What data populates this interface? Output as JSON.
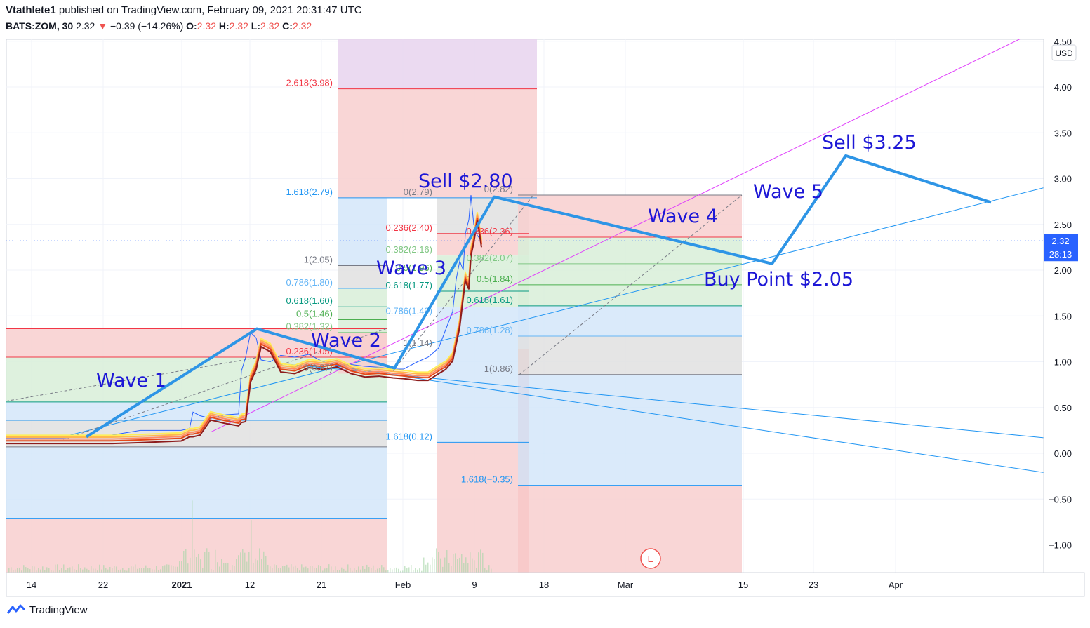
{
  "header": {
    "user": "Vtathlete1",
    "published": "published on TradingView.com, February 09, 2021 20:31:47 UTC",
    "symbol": "BATS:ZOM, 30",
    "last": "2.32",
    "change": "−0.39 (−14.26%)",
    "o_label": "O:",
    "o": "2.32",
    "h_label": "H:",
    "h": "2.32",
    "l_label": "L:",
    "l": "2.32",
    "c_label": "C:",
    "c": "2.32"
  },
  "footer": {
    "brand": "TradingView"
  },
  "chart_data": {
    "type": "line",
    "currency": "USD",
    "y_ticks": [
      "4.50",
      "4.00",
      "3.50",
      "3.00",
      "2.50",
      "2.00",
      "1.50",
      "1.00",
      "0.50",
      "0.00",
      "−0.50",
      "−1.00"
    ],
    "ylim": [
      -1.3,
      4.55
    ],
    "x_ticks": [
      "14",
      "22",
      "2021",
      "12",
      "21",
      "Feb",
      "9",
      "18",
      "Mar",
      "15",
      "23",
      "Apr"
    ],
    "price_label": "2.32",
    "countdown_label": "28:13",
    "earnings_marker": "E",
    "annotations": [
      "Wave 1",
      "Wave 2",
      "Wave 3",
      "Wave 4",
      "Wave 5",
      "Sell $2.80",
      "Sell $3.25",
      "Buy Point $2.05"
    ],
    "elliott_wave_path": [
      {
        "label": "start",
        "y": 0.18
      },
      {
        "label": "Wave 1",
        "y": 1.36
      },
      {
        "label": "Wave 2",
        "y": 0.93
      },
      {
        "label": "Sell $2.80",
        "y": 2.8
      },
      {
        "label": "Buy Point $2.05",
        "y": 2.07
      },
      {
        "label": "Sell $3.25",
        "y": 3.25
      },
      {
        "label": "end",
        "y": 2.74
      }
    ],
    "fib_labels": [
      {
        "text": "2.618(3.98)",
        "value": 3.98,
        "color": "#f23645"
      },
      {
        "text": "1.618(2.79)",
        "value": 2.79,
        "color": "#2196f3"
      },
      {
        "text": "0(2.79)",
        "value": 2.79,
        "color": "#787b86"
      },
      {
        "text": "0(2.82)",
        "value": 2.82,
        "color": "#787b86"
      },
      {
        "text": "0.236(2.40)",
        "value": 2.4,
        "color": "#f23645"
      },
      {
        "text": "0.236(2.36)",
        "value": 2.36,
        "color": "#f23645"
      },
      {
        "text": "0.382(2.16)",
        "value": 2.16,
        "color": "#81c784"
      },
      {
        "text": "0.382(2.07)",
        "value": 2.07,
        "color": "#81c784"
      },
      {
        "text": "1(2.05)",
        "value": 2.05,
        "color": "#787b86"
      },
      {
        "text": "0.5(1.96)",
        "value": 1.96,
        "color": "#4caf50"
      },
      {
        "text": "0.5(1.84)",
        "value": 1.84,
        "color": "#4caf50"
      },
      {
        "text": "0.786(1.80)",
        "value": 1.8,
        "color": "#64b5f6"
      },
      {
        "text": "0.618(1.77)",
        "value": 1.77,
        "color": "#089981"
      },
      {
        "text": "0.618(1.61)",
        "value": 1.61,
        "color": "#089981"
      },
      {
        "text": "0.618(1.60)",
        "value": 1.6,
        "color": "#089981"
      },
      {
        "text": "0.786(1.49)",
        "value": 1.49,
        "color": "#64b5f6"
      },
      {
        "text": "0.5(1.46)",
        "value": 1.46,
        "color": "#4caf50"
      },
      {
        "text": "0.382(1.32)",
        "value": 1.32,
        "color": "#81c784"
      },
      {
        "text": "0.786(1.28)",
        "value": 1.28,
        "color": "#64b5f6"
      },
      {
        "text": "1(1.14)",
        "value": 1.14,
        "color": "#787b86"
      },
      {
        "text": "0.236(1.05)",
        "value": 1.05,
        "color": "#f23645"
      },
      {
        "text": "0(0.87)",
        "value": 0.87,
        "color": "#787b86"
      },
      {
        "text": "1(0.86)",
        "value": 0.86,
        "color": "#787b86"
      },
      {
        "text": "1.618(0.12)",
        "value": 0.12,
        "color": "#2196f3"
      },
      {
        "text": "1.618(−0.35)",
        "value": -0.35,
        "color": "#2196f3"
      }
    ],
    "colors": {
      "wave_line": "#2e95e6",
      "annotation_text": "#1d17d6",
      "pink_line": "#e040fb",
      "fib_red": "#f8cfcf",
      "fib_green": "#d8eed8",
      "fib_blue": "#d3e6f9",
      "fib_gray": "#e0e0e0",
      "fib_purple": "#e7d3ef"
    }
  }
}
